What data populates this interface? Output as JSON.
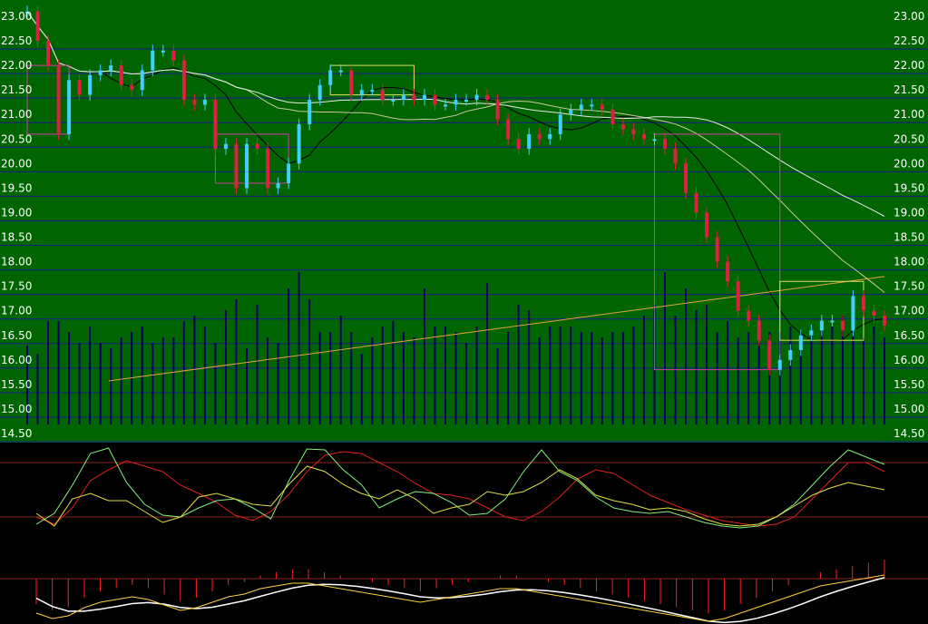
{
  "chart_data": [
    {
      "type": "candlestick",
      "panel": "price",
      "y_ticks": [
        "23.00",
        "22.50",
        "22.00",
        "21.50",
        "21.00",
        "20.50",
        "20.00",
        "19.50",
        "19.00",
        "18.50",
        "18.00",
        "17.50",
        "17.00",
        "16.50",
        "16.00",
        "15.50",
        "15.00",
        "14.50"
      ],
      "ylim": [
        14.5,
        23.0
      ],
      "grid": true,
      "colors": {
        "background": "#006400",
        "grid": "#1c1c8c",
        "up": "#40d0ff",
        "down": "#e02040",
        "ma_short": "#000000",
        "ma_mid": "#c8c8a0",
        "ma_long": "#e8e8e8",
        "trend": "#e8a040",
        "volume": "#000060",
        "box_down": "#d040a0",
        "box_up": "#e0e060"
      },
      "close": [
        23.1,
        22.5,
        22.0,
        20.6,
        21.7,
        21.4,
        21.8,
        21.9,
        22.0,
        21.6,
        21.5,
        21.9,
        22.3,
        22.3,
        22.1,
        21.3,
        21.2,
        21.3,
        20.3,
        20.4,
        19.5,
        20.4,
        20.3,
        19.5,
        19.6,
        20.0,
        20.8,
        21.3,
        21.6,
        21.9,
        21.9,
        21.4,
        21.5,
        21.5,
        21.3,
        21.3,
        21.4,
        21.3,
        21.4,
        21.2,
        21.2,
        21.3,
        21.3,
        21.4,
        21.3,
        20.9,
        20.5,
        20.3,
        20.6,
        20.5,
        20.6,
        21.0,
        21.1,
        21.2,
        21.2,
        21.1,
        20.8,
        20.7,
        20.6,
        20.5,
        20.5,
        20.3,
        20.0,
        19.4,
        19.0,
        18.5,
        18.0,
        17.6,
        17.0,
        16.8,
        16.4,
        15.8,
        16.0,
        16.2,
        16.5,
        16.6,
        16.8,
        16.8,
        16.6,
        17.3,
        17.0,
        16.9,
        16.7
      ],
      "volume": [
        1.45,
        1.3,
        1.9,
        1.9,
        1.7,
        1.5,
        1.8,
        1.5,
        1.4,
        1.6,
        1.7,
        1.8,
        1.5,
        1.6,
        1.6,
        1.9,
        2.0,
        1.8,
        1.5,
        2.1,
        2.3,
        1.4,
        2.2,
        1.6,
        1.5,
        2.5,
        2.8,
        2.3,
        1.7,
        1.7,
        2.0,
        1.7,
        1.3,
        1.6,
        1.8,
        1.9,
        1.7,
        1.6,
        2.5,
        1.8,
        1.8,
        1.7,
        1.5,
        1.8,
        2.6,
        1.4,
        1.7,
        2.2,
        2.1,
        1.6,
        1.8,
        1.8,
        1.8,
        1.7,
        1.7,
        1.6,
        1.7,
        1.7,
        1.8,
        2.0,
        2.2,
        2.8,
        2.0,
        2.5,
        2.1,
        2.2,
        1.7,
        1.9,
        1.6,
        1.7,
        1.5,
        1.7,
        1.7,
        1.8,
        1.7,
        1.7,
        1.8,
        1.8,
        2.0,
        1.7,
        1.6,
        1.8,
        1.6
      ]
    },
    {
      "type": "line",
      "panel": "oscillator",
      "levels": [
        80,
        20
      ],
      "ylim": [
        0,
        100
      ],
      "series": [
        {
          "color": "#e02020",
          "values": [
            20,
            12,
            30,
            60,
            72,
            82,
            76,
            70,
            55,
            46,
            36,
            22,
            16,
            26,
            45,
            70,
            88,
            92,
            90,
            80,
            70,
            57,
            46,
            44,
            40,
            30,
            20,
            16,
            26,
            42,
            62,
            72,
            68,
            56,
            44,
            36,
            28,
            22,
            16,
            13,
            10,
            12,
            20,
            40,
            60,
            80,
            80,
            70
          ]
        },
        {
          "color": "#80f080",
          "values": [
            12,
            24,
            55,
            90,
            96,
            58,
            34,
            22,
            20,
            30,
            38,
            40,
            30,
            18,
            60,
            95,
            94,
            72,
            56,
            30,
            40,
            48,
            46,
            36,
            22,
            24,
            40,
            70,
            94,
            70,
            60,
            42,
            30,
            26,
            24,
            26,
            20,
            14,
            10,
            8,
            10,
            20,
            34,
            55,
            76,
            94,
            86,
            78
          ]
        },
        {
          "color": "#e0e040",
          "values": [
            24,
            10,
            40,
            46,
            38,
            38,
            26,
            14,
            20,
            42,
            46,
            40,
            34,
            32,
            56,
            76,
            70,
            56,
            46,
            40,
            50,
            40,
            24,
            30,
            34,
            48,
            44,
            48,
            58,
            72,
            62,
            44,
            38,
            34,
            28,
            30,
            26,
            18,
            12,
            10,
            12,
            20,
            32,
            44,
            52,
            58,
            54,
            50
          ]
        }
      ]
    },
    {
      "type": "bar+line",
      "panel": "macd",
      "colors": {
        "bar": "#ff2020",
        "signal": "#ffffff",
        "line2": "#ffd040",
        "line3": "#e8e080"
      },
      "histogram": [
        -8,
        -10,
        -9,
        -6,
        -4,
        -3,
        -2,
        -3,
        -5,
        -7,
        -6,
        -4,
        -2,
        -1,
        1,
        2,
        3,
        3,
        2,
        1,
        0,
        -1,
        -2,
        -3,
        -4,
        -3,
        -2,
        -1,
        0,
        1,
        1,
        0,
        -1,
        -2,
        -3,
        -4,
        -5,
        -6,
        -7,
        -8,
        -9,
        -10,
        -11,
        -10,
        -8,
        -6,
        -4,
        -2,
        0,
        2,
        3,
        4,
        5,
        6
      ]
    }
  ]
}
